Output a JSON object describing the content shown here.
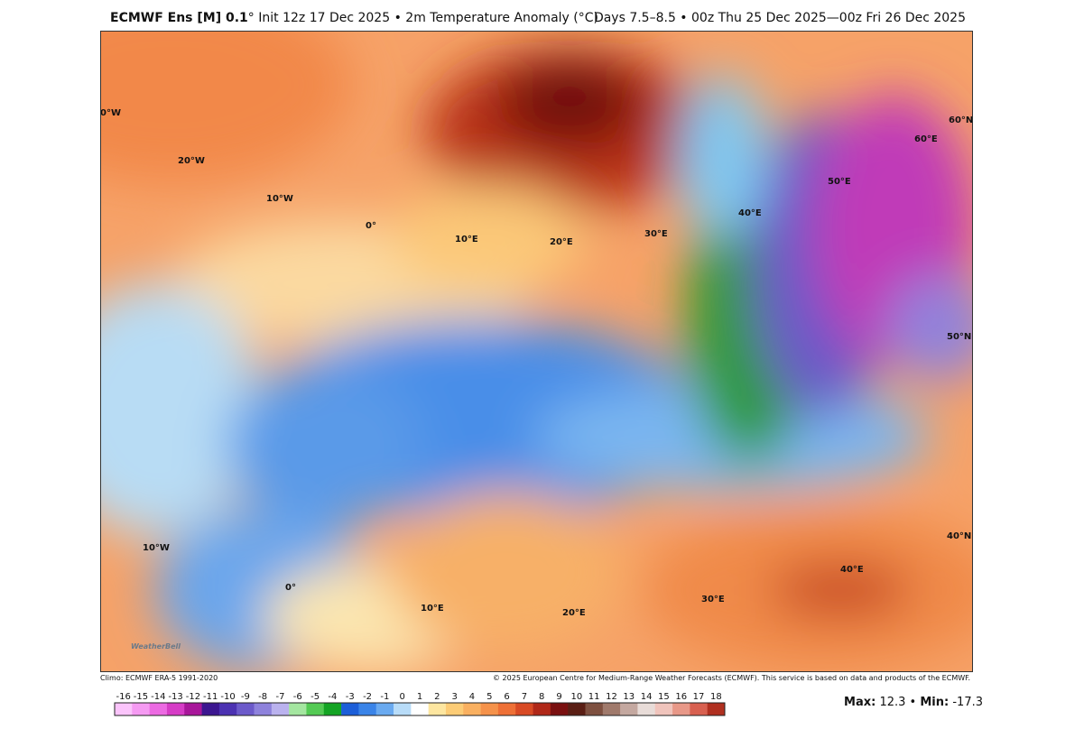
{
  "header": {
    "title_bold": "ECMWF Ens [M] 0.1",
    "title_rest": "° Init 12z 17 Dec 2025 • 2m Temperature Anomaly (°C)",
    "valid": "Days 7.5–8.5 • 00z Thu 25 Dec 2025—00z Fri 26 Dec 2025"
  },
  "map": {
    "grid_labels": [
      "0°W",
      "20°W",
      "10°W",
      "0°",
      "10°E",
      "20°E",
      "30°E",
      "40°E",
      "50°E",
      "60°E",
      "60°N",
      "50°N",
      "40°N",
      "40°E",
      "30°E",
      "20°E",
      "10°E",
      "0°",
      "10°W"
    ],
    "logo": "WeatherBell"
  },
  "footer": {
    "climo": "Climo: ECMWF ERA-5 1991-2020",
    "copyright": "© 2025 European Centre for Medium-Range Weather Forecasts (ECMWF). This service is based on data and products of the ECMWF."
  },
  "colorbar": {
    "labels": [
      -16,
      -15,
      -14,
      -13,
      -12,
      -11,
      -10,
      -9,
      -8,
      -7,
      -6,
      -5,
      -4,
      -3,
      -2,
      -1,
      0,
      1,
      2,
      3,
      4,
      5,
      6,
      7,
      8,
      9,
      10,
      11,
      12,
      13,
      14,
      15,
      16,
      17,
      18
    ],
    "colors": [
      "#fbc4fb",
      "#f59af2",
      "#ec6ae2",
      "#d63cc6",
      "#a8169a",
      "#3c1690",
      "#4c32b2",
      "#6c5aca",
      "#8e82dc",
      "#bab2ee",
      "#a4e6a0",
      "#54ca54",
      "#14a424",
      "#1c5ed8",
      "#3a84e8",
      "#6aaaf0",
      "#b8dcf8",
      "#ffffff",
      "#fde6a0",
      "#fccc76",
      "#f9b060",
      "#f5924a",
      "#ee7036",
      "#d84a24",
      "#b02818",
      "#7a1010",
      "#5a1e14",
      "#7e5040",
      "#a07a6c",
      "#c4a8a0",
      "#e8dcd8",
      "#f0c4bc",
      "#e89888",
      "#d86050",
      "#b03020"
    ]
  },
  "extremes": {
    "max_label": "Max:",
    "max": 12.3,
    "separator": "•",
    "min_label": "Min:",
    "min": -17.3
  }
}
